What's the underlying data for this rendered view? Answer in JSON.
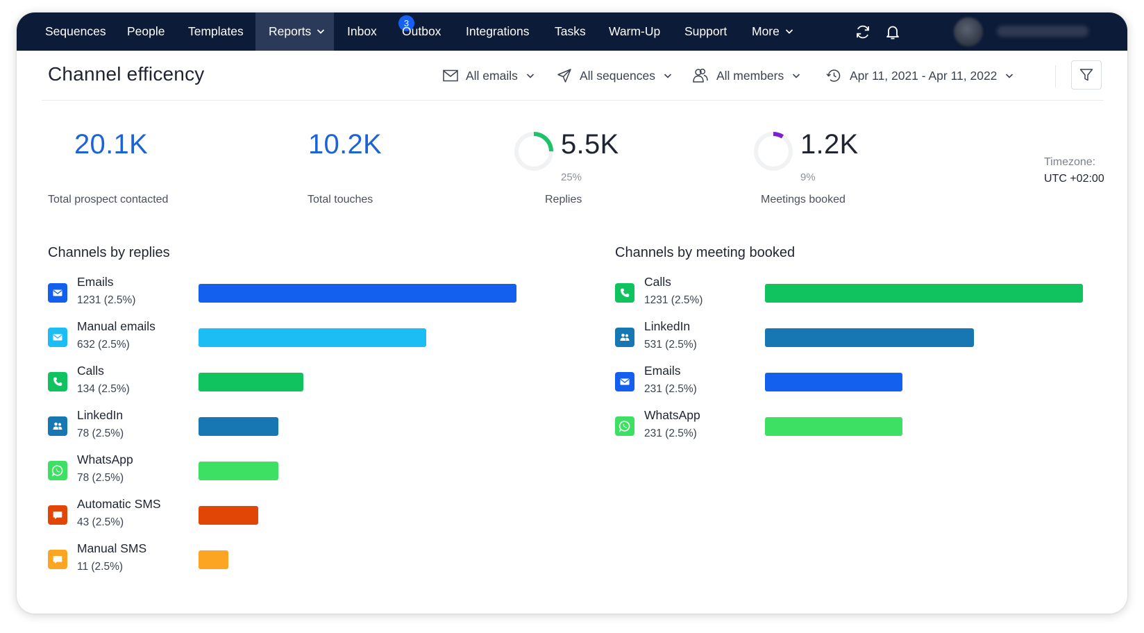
{
  "nav": {
    "items": [
      "Sequences",
      "People",
      "Templates",
      "Reports",
      "Inbox",
      "Outbox",
      "Integrations",
      "Tasks",
      "Warm-Up",
      "Support",
      "More"
    ],
    "active": "Reports",
    "inbox_badge": "3",
    "icons": [
      "refresh-icon",
      "bell-icon"
    ]
  },
  "header": {
    "title": "Channel efficency",
    "filters": {
      "emails": "All emails",
      "sequences": "All sequences",
      "members": "All members",
      "date_range": "Apr 11, 2021 - Apr 11, 2022"
    }
  },
  "stats": {
    "prospects": {
      "value": "20.1K",
      "label": "Total prospect contacted"
    },
    "touches": {
      "value": "10.2K",
      "label": "Total touches"
    },
    "replies": {
      "value": "5.5K",
      "pct": "25%",
      "label": "Replies",
      "fraction": 0.25,
      "color": "#1fc26b"
    },
    "meetings": {
      "value": "1.2K",
      "pct": "9%",
      "label": "Meetings booked",
      "fraction": 0.09,
      "color": "#7b1fd0"
    }
  },
  "timezone": {
    "label": "Timezone:",
    "value": "UTC +02:00"
  },
  "replies_section": {
    "title": "Channels by replies",
    "rows": [
      {
        "name": "Emails",
        "count": "1231 (2.5%)",
        "value": 1231,
        "color": "#1460ee",
        "icon": "email-icon"
      },
      {
        "name": "Manual emails",
        "count": "632 (2.5%)",
        "value": 632,
        "color": "#1cbdf5",
        "icon": "email-icon"
      },
      {
        "name": "Calls",
        "count": "134 (2.5%)",
        "value": 134,
        "color": "#10c35f",
        "icon": "phone-icon"
      },
      {
        "name": "LinkedIn",
        "count": "78 (2.5%)",
        "value": 78,
        "color": "#1677b2",
        "icon": "people-icon"
      },
      {
        "name": "WhatsApp",
        "count": "78 (2.5%)",
        "value": 78,
        "color": "#3ee064",
        "icon": "whatsapp-icon"
      },
      {
        "name": "Automatic SMS",
        "count": "43 (2.5%)",
        "value": 43,
        "color": "#e14607",
        "icon": "sms-icon"
      },
      {
        "name": "Manual SMS",
        "count": "11 (2.5%)",
        "value": 11,
        "color": "#fca523",
        "icon": "sms-icon"
      }
    ]
  },
  "meetings_section": {
    "title": "Channels by meeting booked",
    "rows": [
      {
        "name": "Calls",
        "count": "1231 (2.5%)",
        "value": 1231,
        "color": "#10c35f",
        "icon": "phone-icon"
      },
      {
        "name": "LinkedIn",
        "count": "531 (2.5%)",
        "value": 531,
        "color": "#1677b2",
        "icon": "people-icon"
      },
      {
        "name": "Emails",
        "count": "231 (2.5%)",
        "value": 231,
        "color": "#1460ee",
        "icon": "email-icon"
      },
      {
        "name": "WhatsApp",
        "count": "231 (2.5%)",
        "value": 231,
        "color": "#3ee064",
        "icon": "whatsapp-icon"
      }
    ]
  }
}
